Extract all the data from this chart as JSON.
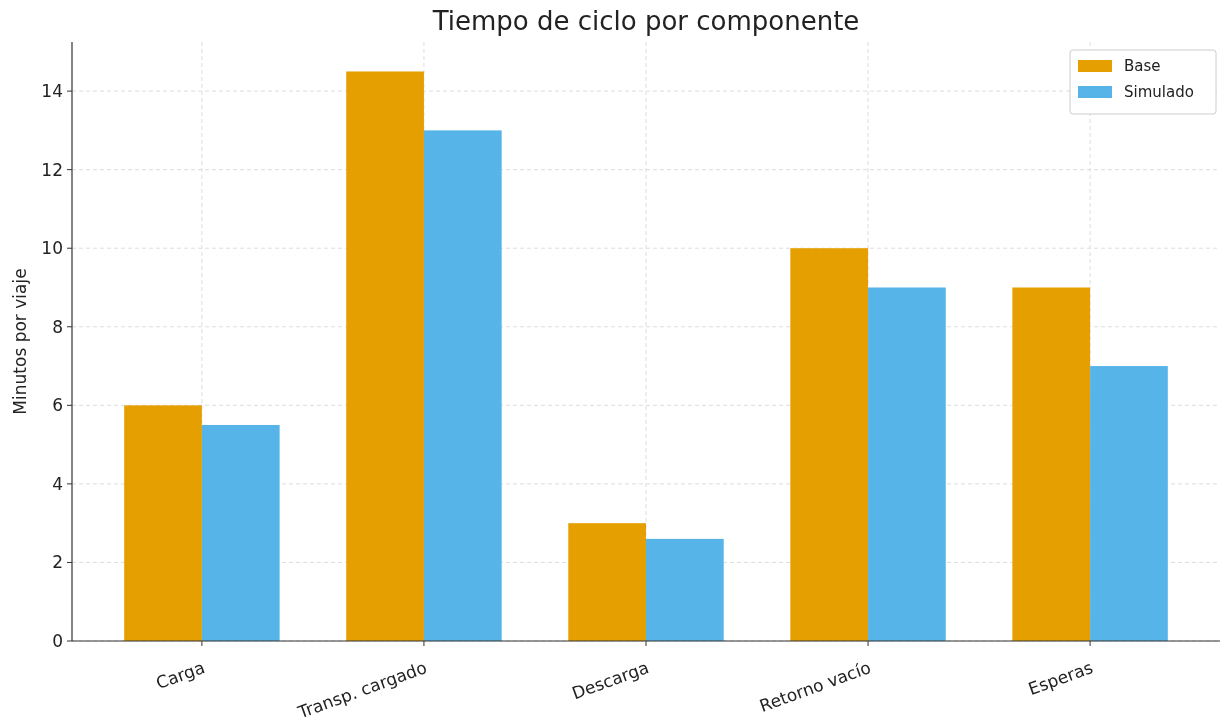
{
  "chart_data": {
    "type": "bar",
    "title": "Tiempo de ciclo por componente",
    "ylabel": "Minutos por viaje",
    "categories": [
      "Carga",
      "Transp. cargado",
      "Descarga",
      "Retorno vacío",
      "Esperas"
    ],
    "series": [
      {
        "name": "Base",
        "color": "#e69f00",
        "values": [
          6,
          14.5,
          3,
          10,
          9
        ]
      },
      {
        "name": "Simulado",
        "color": "#56b4e9",
        "values": [
          5.5,
          13,
          2.6,
          9,
          7
        ]
      }
    ],
    "ylim": [
      0,
      15.25
    ],
    "yticks": [
      0,
      2,
      4,
      6,
      8,
      10,
      12,
      14
    ],
    "grid": true,
    "legend": "top right"
  }
}
